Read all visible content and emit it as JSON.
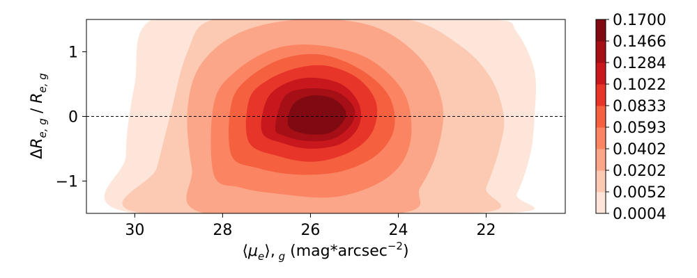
{
  "chart_data": {
    "type": "contourf",
    "xlabel": "⟨μe⟩, g (mag*arcsec⁻²)",
    "ylabel": "ΔRe, g / Re, g",
    "xlim": [
      31.1,
      20.2
    ],
    "ylim": [
      -1.5,
      1.5
    ],
    "x_inverted": true,
    "x_ticks": [
      30,
      28,
      26,
      24,
      22
    ],
    "x_tick_labels": [
      "30",
      "28",
      "26",
      "24",
      "22"
    ],
    "y_ticks": [
      1,
      0,
      -1
    ],
    "y_tick_labels": [
      "1",
      "0",
      "−1"
    ],
    "reference_line": {
      "y": 0,
      "style": "dashed",
      "color": "#000000"
    },
    "colormap": "Reds",
    "colorbar_levels": [
      "0.0004",
      "0.0052",
      "0.0202",
      "0.0402",
      "0.0593",
      "0.0833",
      "0.1022",
      "0.1284",
      "0.1466",
      "0.1700"
    ],
    "colorbar_colors": [
      "#fff5f0",
      "#fee5d9",
      "#fcc9b3",
      "#fca689",
      "#fb8563",
      "#f5603f",
      "#e83529",
      "#c9181d",
      "#a50f15",
      "#7f0a12"
    ],
    "density_peak": {
      "x": 25.8,
      "y": 0.02
    },
    "contours": [
      {
        "level": "0.0004",
        "points": [
          [
            30.0,
            -1.5
          ],
          [
            30.2,
            -0.6
          ],
          [
            30.0,
            0.5
          ],
          [
            29.6,
            1.5
          ],
          [
            27.0,
            1.5
          ],
          [
            24.5,
            1.5
          ],
          [
            21.8,
            1.5
          ],
          [
            21.3,
            1.3
          ],
          [
            20.9,
            0.7
          ],
          [
            20.9,
            0.0
          ],
          [
            21.0,
            -0.6
          ],
          [
            21.3,
            -1.2
          ],
          [
            21.6,
            -1.5
          ]
        ]
      },
      {
        "level": "0.0052",
        "points": [
          [
            29.8,
            -1.5
          ],
          [
            29.5,
            -0.8
          ],
          [
            29.2,
            0.0
          ],
          [
            28.8,
            1.0
          ],
          [
            28.2,
            1.5
          ],
          [
            26.0,
            1.5
          ],
          [
            23.8,
            1.5
          ],
          [
            22.6,
            1.1
          ],
          [
            21.9,
            0.6
          ],
          [
            21.6,
            0.0
          ],
          [
            21.7,
            -0.5
          ],
          [
            22.0,
            -1.1
          ],
          [
            22.3,
            -1.5
          ]
        ]
      },
      {
        "level": "0.0202",
        "points": [
          [
            28.4,
            -1.5
          ],
          [
            28.7,
            -0.8
          ],
          [
            28.8,
            0.1
          ],
          [
            28.5,
            0.8
          ],
          [
            27.6,
            1.3
          ],
          [
            26.2,
            1.5
          ],
          [
            24.6,
            1.4
          ],
          [
            23.5,
            0.9
          ],
          [
            23.0,
            0.2
          ],
          [
            23.1,
            -0.5
          ],
          [
            23.5,
            -1.1
          ],
          [
            24.0,
            -1.5
          ]
        ]
      },
      {
        "level": "0.0402",
        "points": [
          [
            28.2,
            -0.9
          ],
          [
            28.2,
            0.2
          ],
          [
            27.7,
            0.7
          ],
          [
            26.8,
            1.05
          ],
          [
            25.8,
            1.1
          ],
          [
            24.7,
            0.9
          ],
          [
            23.9,
            0.4
          ],
          [
            23.7,
            -0.2
          ],
          [
            23.9,
            -0.7
          ],
          [
            24.5,
            -1.05
          ],
          [
            25.5,
            -1.25
          ],
          [
            26.7,
            -1.2
          ],
          [
            27.6,
            -1.1
          ]
        ]
      },
      {
        "level": "0.0593",
        "points": [
          [
            27.8,
            -0.6
          ],
          [
            27.8,
            0.2
          ],
          [
            27.4,
            0.6
          ],
          [
            26.6,
            0.9
          ],
          [
            25.7,
            0.95
          ],
          [
            24.8,
            0.7
          ],
          [
            24.2,
            0.3
          ],
          [
            24.1,
            -0.2
          ],
          [
            24.5,
            -0.6
          ],
          [
            25.3,
            -0.85
          ],
          [
            26.3,
            -0.9
          ],
          [
            27.2,
            -0.8
          ]
        ]
      },
      {
        "level": "0.0833",
        "points": [
          [
            27.4,
            -0.4
          ],
          [
            27.4,
            0.25
          ],
          [
            27.0,
            0.55
          ],
          [
            26.3,
            0.75
          ],
          [
            25.6,
            0.78
          ],
          [
            24.9,
            0.58
          ],
          [
            24.5,
            0.2
          ],
          [
            24.6,
            -0.25
          ],
          [
            25.1,
            -0.55
          ],
          [
            25.9,
            -0.7
          ],
          [
            26.7,
            -0.62
          ]
        ]
      },
      {
        "level": "0.1022",
        "points": [
          [
            27.1,
            -0.25
          ],
          [
            27.0,
            0.25
          ],
          [
            26.6,
            0.5
          ],
          [
            26.0,
            0.6
          ],
          [
            25.3,
            0.5
          ],
          [
            24.9,
            0.2
          ],
          [
            24.9,
            -0.15
          ],
          [
            25.3,
            -0.42
          ],
          [
            26.0,
            -0.5
          ],
          [
            26.6,
            -0.42
          ]
        ]
      },
      {
        "level": "0.1284",
        "points": [
          [
            26.8,
            -0.18
          ],
          [
            26.6,
            0.3
          ],
          [
            26.1,
            0.43
          ],
          [
            25.4,
            0.38
          ],
          [
            25.0,
            0.12
          ],
          [
            25.1,
            -0.15
          ],
          [
            25.5,
            -0.35
          ],
          [
            26.1,
            -0.38
          ],
          [
            26.6,
            -0.3
          ]
        ]
      },
      {
        "level": "0.1466",
        "points": [
          [
            26.5,
            -0.15
          ],
          [
            26.4,
            0.18
          ],
          [
            26.0,
            0.32
          ],
          [
            25.5,
            0.28
          ],
          [
            25.2,
            0.08
          ],
          [
            25.3,
            -0.12
          ],
          [
            25.6,
            -0.26
          ],
          [
            26.1,
            -0.27
          ]
        ]
      }
    ]
  }
}
